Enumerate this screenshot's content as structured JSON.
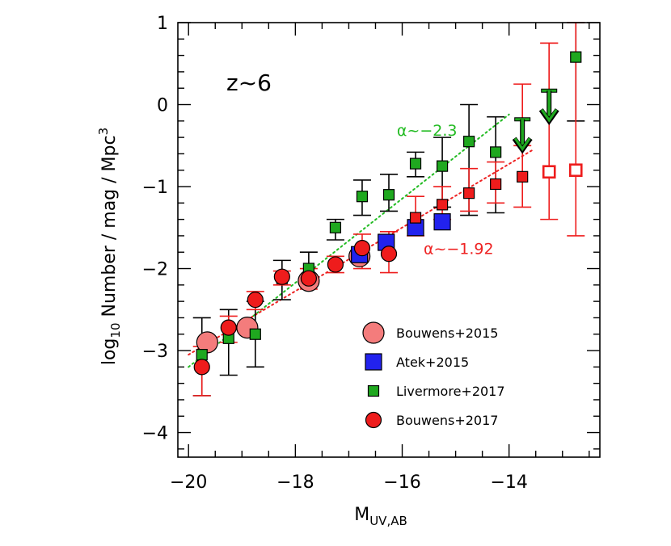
{
  "chart_data": {
    "type": "scatter",
    "xlabel": "M",
    "xlabel_sub": "UV,AB",
    "ylabel_prefix": "log",
    "ylabel_sub": "10",
    "ylabel_rest": " Number / mag / Mpc",
    "ylabel_sup": "3",
    "annotation": "z~6",
    "xlim": [
      -20.2,
      -12.3
    ],
    "ylim": [
      -4.3,
      1.0
    ],
    "x_ticks": [
      -20,
      -18,
      -16,
      -14
    ],
    "x_tick_labels": [
      "−20",
      "−18",
      "−16",
      "−14"
    ],
    "y_ticks": [
      -4,
      -3,
      -2,
      -1,
      0,
      1
    ],
    "y_tick_labels": [
      "−4",
      "−3",
      "−2",
      "−1",
      "0",
      "1"
    ],
    "legend_position": "lower-right",
    "fits": [
      {
        "label": "α~−2.3",
        "color": "#22bb22",
        "x": [
          -20,
          -14
        ],
        "y": [
          -3.2,
          -0.12
        ],
        "label_x": -16.1,
        "label_y": -0.38
      },
      {
        "label": "α~−1.92",
        "color": "#ee2222",
        "x": [
          -20,
          -13.55
        ],
        "y": [
          -3.05,
          -0.55
        ],
        "label_x": -15.6,
        "label_y": -1.82
      }
    ],
    "series": [
      {
        "name": "Bouwens+2015",
        "marker": "large-circle",
        "color": "#f47c7c",
        "points": [
          {
            "x": -19.65,
            "y": -2.9
          },
          {
            "x": -18.9,
            "y": -2.72
          },
          {
            "x": -17.75,
            "y": -2.15
          },
          {
            "x": -16.8,
            "y": -1.85
          }
        ]
      },
      {
        "name": "Atek+2015",
        "marker": "square",
        "color": "#2222ee",
        "points": [
          {
            "x": -16.8,
            "y": -1.83
          },
          {
            "x": -16.3,
            "y": -1.68
          },
          {
            "x": -15.75,
            "y": -1.5
          },
          {
            "x": -15.25,
            "y": -1.43
          }
        ]
      },
      {
        "name": "Livermore+2017",
        "marker": "small-square",
        "color": "#1fa81f",
        "points": [
          {
            "x": -19.75,
            "y": -3.05,
            "lo": -3.55,
            "hi": -2.6
          },
          {
            "x": -19.25,
            "y": -2.85,
            "lo": -3.3,
            "hi": -2.5
          },
          {
            "x": -18.75,
            "y": -2.8,
            "lo": -3.2,
            "hi": -2.4
          },
          {
            "x": -18.25,
            "y": -2.12,
            "lo": -2.38,
            "hi": -1.9
          },
          {
            "x": -17.75,
            "y": -2.0,
            "lo": -2.2,
            "hi": -1.8
          },
          {
            "x": -17.25,
            "y": -1.5,
            "lo": -1.65,
            "hi": -1.4
          },
          {
            "x": -16.75,
            "y": -1.12,
            "lo": -1.35,
            "hi": -0.92
          },
          {
            "x": -16.25,
            "y": -1.1,
            "lo": -1.3,
            "hi": -0.85
          },
          {
            "x": -15.75,
            "y": -0.72,
            "lo": -0.88,
            "hi": -0.58
          },
          {
            "x": -15.25,
            "y": -0.75,
            "lo": -1.25,
            "hi": -0.4
          },
          {
            "x": -14.75,
            "y": -0.45,
            "lo": -1.35,
            "hi": 0.0
          },
          {
            "x": -14.25,
            "y": -0.58,
            "lo": -1.32,
            "hi": -0.15
          },
          {
            "x": -12.75,
            "y": 0.58,
            "lo": -0.2,
            "hi": 1.0
          }
        ]
      },
      {
        "name": "Bouwens+2017",
        "marker": "circle",
        "color": "#ee1c1c",
        "points": [
          {
            "x": -19.75,
            "y": -3.2,
            "lo": -3.55,
            "hi": -2.95
          },
          {
            "x": -19.25,
            "y": -2.72,
            "lo": -2.9,
            "hi": -2.58
          },
          {
            "x": -18.75,
            "y": -2.38,
            "lo": -2.5,
            "hi": -2.28
          },
          {
            "x": -18.25,
            "y": -2.1,
            "lo": -2.2,
            "hi": -2.03
          },
          {
            "x": -17.75,
            "y": -2.12,
            "lo": -2.25,
            "hi": -2.0
          },
          {
            "x": -17.25,
            "y": -1.95,
            "lo": -2.05,
            "hi": -1.85
          },
          {
            "x": -16.75,
            "y": -1.75,
            "lo": -2.0,
            "hi": -1.58
          },
          {
            "x": -16.25,
            "y": -1.82,
            "lo": -2.05,
            "hi": -1.55
          }
        ]
      },
      {
        "name": "Bouwens+2017 faint",
        "marker": "small-square",
        "color": "#ee1c1c",
        "points": [
          {
            "x": -15.75,
            "y": -1.38,
            "lo": -1.6,
            "hi": -1.12
          },
          {
            "x": -15.25,
            "y": -1.22,
            "lo": -1.4,
            "hi": -1.0
          },
          {
            "x": -14.75,
            "y": -1.08,
            "lo": -1.3,
            "hi": -0.78
          },
          {
            "x": -14.25,
            "y": -0.97,
            "lo": -1.2,
            "hi": -0.7
          },
          {
            "x": -13.75,
            "y": -0.88,
            "lo": -1.25,
            "hi": -0.5
          }
        ]
      },
      {
        "name": "Bouwens+2017 open",
        "marker": "open-square",
        "color": "#ee1c1c",
        "points": [
          {
            "x": -13.25,
            "y": -0.82,
            "lo": -1.4,
            "hi": 0.75
          },
          {
            "x": -12.75,
            "y": -0.8,
            "lo": -1.6,
            "hi": 1.0
          }
        ]
      },
      {
        "name": "upper limits",
        "marker": "arrow-down",
        "color": "#1fa81f",
        "points": [
          {
            "x": -13.75,
            "y": -0.18,
            "hi": 0.25,
            "to": -0.55
          },
          {
            "x": -13.25,
            "y": 0.17,
            "hi": 0.75,
            "to": -0.2
          }
        ]
      }
    ],
    "legend": [
      {
        "label": "Bouwens+2015",
        "marker": "large-circle",
        "color": "#f47c7c"
      },
      {
        "label": "Atek+2015",
        "marker": "square",
        "color": "#2222ee"
      },
      {
        "label": "Livermore+2017",
        "marker": "small-square",
        "color": "#1fa81f"
      },
      {
        "label": "Bouwens+2017",
        "marker": "circle",
        "color": "#ee1c1c"
      }
    ]
  }
}
